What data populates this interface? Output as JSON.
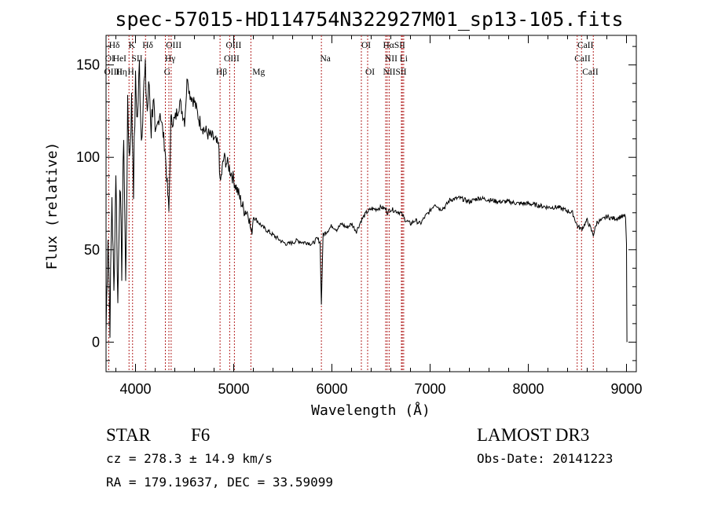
{
  "chart_data": {
    "type": "line",
    "title": "spec-57015-HD114754N322927M01_sp13-105.fits",
    "xlabel": "Wavelength (Å)",
    "ylabel": "Flux (relative)",
    "xlim": [
      3700,
      9100
    ],
    "ylim": [
      -16,
      166
    ],
    "x_ticks": [
      4000,
      5000,
      6000,
      7000,
      8000,
      9000
    ],
    "y_ticks": [
      0,
      50,
      100,
      150
    ],
    "x_tick_labels": [
      "4000",
      "5000",
      "6000",
      "7000",
      "8000",
      "9000"
    ],
    "y_tick_labels": [
      "0",
      "50",
      "100",
      "150"
    ],
    "grid": false,
    "series": [
      {
        "x": [
          3700,
          3720,
          3740,
          3760,
          3780,
          3800,
          3820,
          3840,
          3860,
          3880,
          3900,
          3920,
          3940,
          3960,
          3980,
          4000,
          4020,
          4040,
          4060,
          4080,
          4100,
          4120,
          4140,
          4160,
          4180,
          4200,
          4250,
          4300,
          4340,
          4360,
          4400,
          4450,
          4500,
          4530,
          4550,
          4600,
          4650,
          4700,
          4750,
          4800,
          4850,
          4861,
          4900,
          4950,
          5000,
          5050,
          5100,
          5150,
          5180,
          5200,
          5250,
          5300,
          5350,
          5400,
          5450,
          5500,
          5550,
          5600,
          5650,
          5700,
          5750,
          5800,
          5850,
          5880,
          5893,
          5910,
          5950,
          6000,
          6050,
          6100,
          6150,
          6200,
          6250,
          6300,
          6350,
          6400,
          6450,
          6500,
          6550,
          6563,
          6600,
          6650,
          6700,
          6750,
          6800,
          6850,
          6900,
          6950,
          7000,
          7050,
          7100,
          7150,
          7200,
          7300,
          7400,
          7500,
          7600,
          7700,
          7800,
          7900,
          8000,
          8100,
          8200,
          8300,
          8400,
          8450,
          8498,
          8542,
          8600,
          8662,
          8700,
          8750,
          8800,
          8850,
          8900,
          8950,
          8990,
          9000,
          9005
        ],
        "y": [
          5,
          60,
          10,
          80,
          25,
          95,
          20,
          90,
          40,
          115,
          30,
          125,
          100,
          130,
          85,
          140,
          120,
          150,
          110,
          135,
          145,
          125,
          140,
          115,
          135,
          110,
          125,
          105,
          70,
          120,
          120,
          130,
          120,
          145,
          135,
          130,
          120,
          115,
          112,
          110,
          105,
          85,
          100,
          95,
          88,
          80,
          72,
          70,
          58,
          68,
          65,
          62,
          60,
          58,
          56,
          54,
          53,
          54,
          55,
          54,
          54,
          53,
          56,
          54,
          20,
          58,
          60,
          63,
          61,
          64,
          62,
          64,
          60,
          66,
          70,
          72,
          72,
          73,
          72,
          70,
          72,
          71,
          70,
          66,
          64,
          66,
          64,
          68,
          71,
          75,
          72,
          73,
          77,
          78,
          76,
          78,
          77,
          76,
          76,
          75,
          75,
          74,
          73,
          73,
          71,
          70,
          63,
          61,
          66,
          58,
          65,
          66,
          68,
          67,
          67,
          68,
          68,
          52,
          0
        ]
      }
    ],
    "line_markers": [
      {
        "name": "Hδ",
        "x": 4102
      },
      {
        "name": "K",
        "x": 3934
      },
      {
        "name": "Hε",
        "x": 3970
      },
      {
        "name": "OII",
        "x": 3727
      },
      {
        "name": "OIII",
        "x": 4363
      },
      {
        "name": "Hγ",
        "x": 4340
      },
      {
        "name": "G",
        "x": 4304
      },
      {
        "name": "Hβ",
        "x": 4861
      },
      {
        "name": "OIII",
        "x": 4959
      },
      {
        "name": "OIII",
        "x": 5007
      },
      {
        "name": "Mg",
        "x": 5175
      },
      {
        "name": "Na",
        "x": 5893
      },
      {
        "name": "OI",
        "x": 6300
      },
      {
        "name": "OI",
        "x": 6364
      },
      {
        "name": "Hα",
        "x": 6563
      },
      {
        "name": "NII",
        "x": 6548
      },
      {
        "name": "NII",
        "x": 6583
      },
      {
        "name": "SII",
        "x": 6717
      },
      {
        "name": "SII",
        "x": 6731
      },
      {
        "name": "Li",
        "x": 6708
      },
      {
        "name": "CaII",
        "x": 8498
      },
      {
        "name": "CaII",
        "x": 8542
      },
      {
        "name": "CaII",
        "x": 8662
      }
    ],
    "annotations_top": [
      "Hδ",
      "K",
      "Hδ",
      "OIII",
      "OIII",
      "OI",
      "HαSII",
      "CaII"
    ],
    "annotations_mid": [
      "OI",
      "HeI",
      "SII",
      "Hγ",
      "OIII",
      "Na",
      "NII",
      "Li",
      "CaII"
    ],
    "annotations_low": [
      "OIIII",
      "Hη",
      "H",
      "G",
      "Hβ",
      "Mg",
      "OI",
      "NIISII",
      "CaII"
    ]
  },
  "info": {
    "object_class": "STAR",
    "subclass": "F6",
    "survey": "LAMOST DR3",
    "redshift": "cz = 278.3 ± 14.9 km/s",
    "obs_date": "Obs-Date: 20141223",
    "coords": "RA = 179.19637, DEC =  33.59099"
  }
}
